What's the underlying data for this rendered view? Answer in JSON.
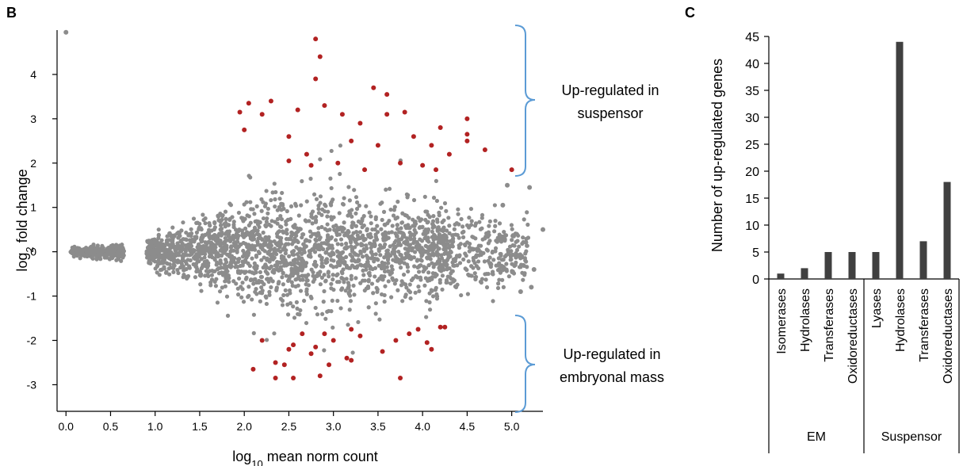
{
  "panels": {
    "b": {
      "letter": "B"
    },
    "c": {
      "letter": "C"
    }
  },
  "annotations": {
    "up_suspensor": [
      "Up-regulated in",
      "suspensor"
    ],
    "up_em": [
      "Up-regulated in",
      "embryonal mass"
    ]
  },
  "colors": {
    "gray_points": "#8c8c8c",
    "red_points": "#b22222",
    "bracket": "#5b9bd5",
    "bars": "#404040"
  },
  "chart_data": [
    {
      "type": "scatter",
      "title": "",
      "xlabel_main": "log",
      "xlabel_sub": "10",
      "xlabel_rest": " mean norm count",
      "ylabel_main": "log",
      "ylabel_sub": "2",
      "ylabel_rest": " fold change",
      "xlim": [
        -0.1,
        5.35
      ],
      "ylim": [
        -3.6,
        5.0
      ],
      "xticks": [
        "0.0",
        "0.5",
        "1.0",
        "1.5",
        "2.0",
        "2.5",
        "3.0",
        "3.5",
        "4.0",
        "4.5",
        "5.0"
      ],
      "xtick_values": [
        0,
        0.5,
        1.0,
        1.5,
        2.0,
        2.5,
        3.0,
        3.5,
        4.0,
        4.5,
        5.0
      ],
      "yticks": [
        "4",
        "3",
        "2",
        "1",
        "0",
        "-1",
        "-2",
        "-3"
      ],
      "ytick_values": [
        4,
        3,
        2,
        1,
        0,
        -1,
        -2,
        -3
      ],
      "series": [
        {
          "color": "#8c8c8c",
          "points": [
            [
              0.0,
              4.95
            ],
            [
              5.35,
              0.5
            ],
            [
              5.2,
              1.45
            ],
            [
              5.25,
              -0.4
            ],
            [
              5.22,
              -0.8
            ],
            [
              4.95,
              1.5
            ],
            [
              5.1,
              -0.9
            ],
            [
              4.9,
              1.05
            ]
          ]
        },
        {
          "color": "#b22222",
          "points": [
            [
              2.8,
              4.8
            ],
            [
              2.85,
              4.4
            ],
            [
              2.8,
              3.9
            ],
            [
              3.45,
              3.7
            ],
            [
              3.6,
              3.55
            ],
            [
              2.05,
              3.35
            ],
            [
              2.3,
              3.4
            ],
            [
              4.5,
              3.0
            ],
            [
              4.5,
              2.65
            ],
            [
              4.5,
              2.5
            ],
            [
              4.7,
              2.3
            ],
            [
              5.0,
              1.85
            ],
            [
              2.2,
              3.1
            ],
            [
              1.95,
              3.15
            ],
            [
              2.5,
              2.6
            ],
            [
              2.6,
              3.2
            ],
            [
              2.9,
              3.3
            ],
            [
              3.1,
              3.1
            ],
            [
              3.3,
              2.9
            ],
            [
              3.6,
              3.1
            ],
            [
              3.8,
              3.15
            ],
            [
              4.2,
              2.8
            ],
            [
              3.2,
              2.5
            ],
            [
              3.5,
              2.4
            ],
            [
              2.7,
              2.2
            ],
            [
              2.0,
              2.75
            ],
            [
              4.3,
              2.2
            ],
            [
              3.9,
              2.6
            ],
            [
              4.1,
              2.4
            ],
            [
              4.0,
              1.95
            ],
            [
              4.15,
              1.85
            ],
            [
              2.75,
              1.95
            ],
            [
              2.5,
              2.05
            ],
            [
              3.05,
              2.0
            ],
            [
              3.35,
              1.85
            ],
            [
              3.75,
              2.0
            ],
            [
              2.1,
              -2.65
            ],
            [
              2.35,
              -2.5
            ],
            [
              2.45,
              -2.55
            ],
            [
              2.35,
              -2.85
            ],
            [
              2.55,
              -2.85
            ],
            [
              2.75,
              -2.3
            ],
            [
              2.8,
              -2.15
            ],
            [
              2.85,
              -2.8
            ],
            [
              2.95,
              -2.55
            ],
            [
              3.15,
              -2.4
            ],
            [
              3.2,
              -2.45
            ],
            [
              3.0,
              -2.0
            ],
            [
              3.2,
              -1.75
            ],
            [
              3.3,
              -1.9
            ],
            [
              3.7,
              -2.0
            ],
            [
              3.85,
              -1.85
            ],
            [
              3.75,
              -2.85
            ],
            [
              3.55,
              -2.25
            ],
            [
              2.65,
              -1.85
            ],
            [
              2.5,
              -2.2
            ],
            [
              4.05,
              -2.05
            ],
            [
              4.2,
              -1.7
            ],
            [
              4.25,
              -1.7
            ],
            [
              4.1,
              -2.2
            ],
            [
              3.95,
              -1.75
            ],
            [
              2.2,
              -2.0
            ],
            [
              2.55,
              -2.1
            ],
            [
              2.9,
              -1.85
            ]
          ]
        }
      ]
    },
    {
      "type": "bar",
      "title": "",
      "ylabel": "Number of up-regulated genes",
      "ylim": [
        0,
        45
      ],
      "yticks": [
        "0",
        "5",
        "10",
        "15",
        "20",
        "25",
        "30",
        "35",
        "40",
        "45"
      ],
      "ytick_values": [
        0,
        5,
        10,
        15,
        20,
        25,
        30,
        35,
        40,
        45
      ],
      "categories": [
        "Isomerases",
        "Hydrolases",
        "Transferases",
        "Oxidoreductases",
        "Lyases",
        "Hydrolases",
        "Transferases",
        "Oxidoreductases"
      ],
      "values": [
        1,
        2,
        5,
        5,
        5,
        44,
        7,
        18
      ],
      "groups": [
        {
          "name": "EM",
          "count": 4
        },
        {
          "name": "Suspensor",
          "count": 4
        }
      ]
    }
  ]
}
